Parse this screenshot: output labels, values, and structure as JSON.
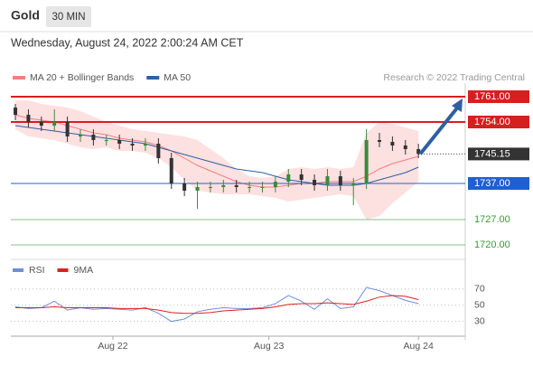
{
  "header": {
    "instrument": "Gold",
    "timeframe": "30 MIN",
    "timestamp": "Wednesday, August 24, 2022 2:00:24 AM CET",
    "credit": "Research © 2022 Trading Central"
  },
  "chart_data": [
    {
      "type": "candlestick",
      "x": [
        -15,
        -13,
        -11,
        -9,
        -7,
        -5,
        -3,
        -1,
        1,
        3,
        5,
        7,
        9,
        11,
        13,
        15,
        17,
        19,
        21,
        23,
        25,
        27,
        29,
        31,
        33,
        35,
        37,
        39,
        41,
        43,
        45,
        47
      ],
      "open": [
        1758,
        1756,
        1754,
        1753,
        1754,
        1750,
        1750.5,
        1749,
        1749,
        1748,
        1747.5,
        1748,
        1744,
        1737,
        1735,
        1736,
        1736,
        1736.5,
        1736,
        1736,
        1736,
        1737.5,
        1739.5,
        1738,
        1736.5,
        1739,
        1736.5,
        1737,
        1749,
        1748.5,
        1747.5,
        1746.5
      ],
      "high": [
        1759,
        1757.5,
        1755.5,
        1757.5,
        1755.5,
        1752,
        1752,
        1750.5,
        1750.5,
        1749.5,
        1749.5,
        1749.5,
        1745.5,
        1738.5,
        1737.5,
        1737.5,
        1738,
        1738,
        1737.5,
        1737.5,
        1739,
        1741,
        1741,
        1739.5,
        1741,
        1740.5,
        1738.5,
        1752,
        1751,
        1750,
        1749,
        1748
      ],
      "low": [
        1754.5,
        1752.5,
        1751.5,
        1751.5,
        1748.5,
        1748.5,
        1747.5,
        1747.5,
        1746.5,
        1746,
        1746,
        1742.5,
        1735.5,
        1733.5,
        1730,
        1734.5,
        1734.5,
        1734.5,
        1734.5,
        1734.5,
        1734.5,
        1736,
        1736.5,
        1735,
        1735,
        1735,
        1731,
        1735.5,
        1747,
        1746,
        1745,
        1744
      ],
      "close": [
        1756,
        1754,
        1753,
        1754,
        1750,
        1750.5,
        1749,
        1749,
        1748,
        1747.5,
        1748,
        1744,
        1737,
        1735,
        1736,
        1736,
        1736.5,
        1736,
        1736,
        1736,
        1737.5,
        1739.5,
        1738,
        1736.5,
        1739,
        1736.5,
        1737,
        1749,
        1748.5,
        1747.5,
        1746.5,
        1745.15
      ],
      "up_color": "#3a8a3a",
      "down_color": "#333333",
      "indicators": [
        {
          "name": "MA 20 + Bollinger Bands",
          "color": "#f08080",
          "band_color": "#fde0e0",
          "values": [
            1756,
            1755,
            1754.5,
            1754,
            1753,
            1752,
            1751,
            1750.5,
            1749.5,
            1749,
            1748.5,
            1747.5,
            1746,
            1744,
            1742,
            1740.5,
            1739,
            1737.5,
            1736.5,
            1736,
            1736,
            1736.5,
            1737,
            1737,
            1737.5,
            1737.5,
            1737.5,
            1739,
            1741,
            1742.5,
            1743.5,
            1744.5
          ],
          "upper": [
            1760,
            1760,
            1759,
            1758.5,
            1758,
            1757,
            1755.5,
            1754,
            1753,
            1752,
            1751.5,
            1751,
            1750.5,
            1750,
            1749,
            1746.5,
            1744,
            1741,
            1739,
            1738.5,
            1739,
            1741,
            1741.5,
            1741,
            1741.5,
            1741,
            1741.5,
            1751,
            1754,
            1753.5,
            1752.5,
            1751.5
          ],
          "lower": [
            1752,
            1750,
            1749.5,
            1749,
            1748,
            1747,
            1746.5,
            1747,
            1746,
            1746,
            1745.5,
            1744,
            1741.5,
            1738,
            1735,
            1734.5,
            1734,
            1734,
            1734,
            1733.5,
            1733,
            1732,
            1732.5,
            1733,
            1733.5,
            1734,
            1733.5,
            1727,
            1728,
            1731.5,
            1734.5,
            1737.5
          ]
        },
        {
          "name": "MA 50",
          "color": "#2e5fa3",
          "values": [
            1753,
            1752.5,
            1752,
            1751.5,
            1751,
            1750.5,
            1750,
            1749.5,
            1749,
            1748.5,
            1748,
            1747,
            1746,
            1745,
            1744,
            1743,
            1742,
            1741,
            1740.5,
            1740,
            1739,
            1738,
            1737.5,
            1737,
            1736.5,
            1736.5,
            1736.5,
            1737,
            1738,
            1739,
            1740,
            1741.5
          ]
        }
      ],
      "levels": [
        {
          "value": 1761,
          "label": "1761.00",
          "color": "#d61f1f",
          "boxed": true
        },
        {
          "value": 1754,
          "label": "1754.00",
          "color": "#d61f1f",
          "boxed": true
        },
        {
          "value": 1745.15,
          "label": "1745.15",
          "color": "#333333",
          "boxed": true
        },
        {
          "value": 1737,
          "label": "1737.00",
          "color": "#1f5fcf",
          "boxed": true
        },
        {
          "value": 1727,
          "label": "1727.00",
          "color": "#3a9a3a",
          "boxed": false
        },
        {
          "value": 1720,
          "label": "1720.00",
          "color": "#3a9a3a",
          "boxed": false
        }
      ],
      "ylim": [
        1716.5,
        1764.75
      ],
      "xlim": [
        -15.7,
        54.2
      ],
      "xticks": [
        {
          "value": 0,
          "label": "Aug 22"
        },
        {
          "value": 24,
          "label": "Aug 23"
        },
        {
          "value": 47,
          "label": "Aug 24"
        }
      ]
    },
    {
      "type": "line",
      "x": [
        -15,
        -13,
        -11,
        -9,
        -7,
        -5,
        -3,
        -1,
        1,
        3,
        5,
        7,
        9,
        11,
        13,
        15,
        17,
        19,
        21,
        23,
        25,
        27,
        29,
        31,
        33,
        35,
        37,
        39,
        41,
        43,
        45,
        47
      ],
      "series": [
        {
          "name": "RSI",
          "color": "#6f8fd8",
          "values": [
            48,
            46,
            47,
            55,
            44,
            47,
            45,
            46,
            45,
            44,
            47,
            40,
            30,
            33,
            42,
            45,
            47,
            46,
            46,
            47,
            52,
            62,
            55,
            45,
            58,
            46,
            48,
            72,
            68,
            62,
            56,
            52
          ]
        },
        {
          "name": "9MA",
          "color": "#e02020",
          "values": [
            47,
            47,
            47,
            48,
            47,
            47,
            47,
            47,
            46,
            46,
            46,
            44,
            41,
            40,
            40,
            41,
            43,
            44,
            45,
            46,
            48,
            51,
            52,
            52,
            53,
            52,
            51,
            55,
            60,
            62,
            61,
            57
          ]
        }
      ],
      "ylim": [
        14,
        81
      ],
      "yticks": [
        30,
        50,
        70
      ],
      "xlim": [
        -15.7,
        54.2
      ]
    }
  ]
}
